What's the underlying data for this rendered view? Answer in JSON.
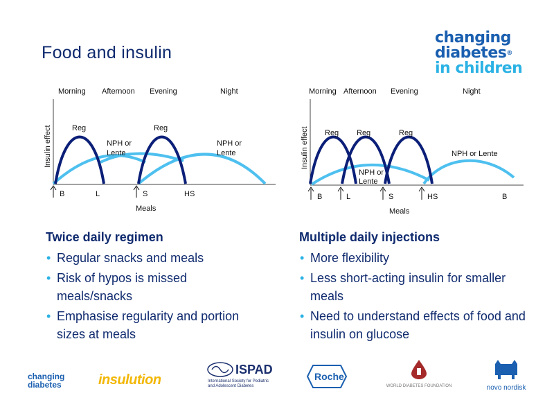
{
  "slide": {
    "title": "Food and insulin",
    "brand": {
      "line1": "changing",
      "line2": "diabetes",
      "line3": "in children",
      "reg": "®"
    }
  },
  "diagram_left": {
    "periods": [
      "Morning",
      "Afternoon",
      "Evening",
      "Night"
    ],
    "y_label": "Insulin effect",
    "x_label": "Meals",
    "meals": [
      "B",
      "L",
      "S",
      "HS"
    ],
    "curve_labels": {
      "reg1": "Reg",
      "reg2": "Reg",
      "nph1_a": "NPH or",
      "nph1_b": "Lente",
      "nph2_a": "NPH or",
      "nph2_b": "Lente"
    },
    "colors": {
      "regular": "#0b1f78",
      "nph": "#4ec0ef"
    }
  },
  "diagram_right": {
    "periods": [
      "Morning",
      "Afternoon",
      "Evening",
      "Night"
    ],
    "y_label": "Insulin effect",
    "x_label": "Meals",
    "meals": [
      "B",
      "L",
      "S",
      "HS",
      "B"
    ],
    "curve_labels": {
      "reg1": "Reg",
      "reg2": "Reg",
      "reg3": "Reg",
      "nph_a": "NPH or",
      "nph_b": "Lente",
      "nph_night": "NPH or Lente"
    },
    "colors": {
      "regular": "#0b1f78",
      "nph": "#4ec0ef"
    }
  },
  "left_col": {
    "heading": "Twice daily regimen",
    "bullets": [
      "Regular snacks and meals",
      "Risk of hypos is missed meals/snacks",
      "Emphasise regularity and portion sizes at meals"
    ]
  },
  "right_col": {
    "heading": "Multiple daily injections",
    "bullets": [
      "More flexibility",
      "Less short-acting insulin for smaller meals",
      "Need to understand effects of food and insulin on glucose"
    ]
  },
  "footer": {
    "changing": "changing",
    "diabetes": "diabetes",
    "insulution": "insulution",
    "ispad": "ISPAD",
    "ispad_sub1": "International Society for Pediatric",
    "ispad_sub2": "and Adolescent Diabetes",
    "roche": "Roche",
    "wdf": "WORLD DIABETES FOUNDATION",
    "novo": "novo nordisk"
  }
}
